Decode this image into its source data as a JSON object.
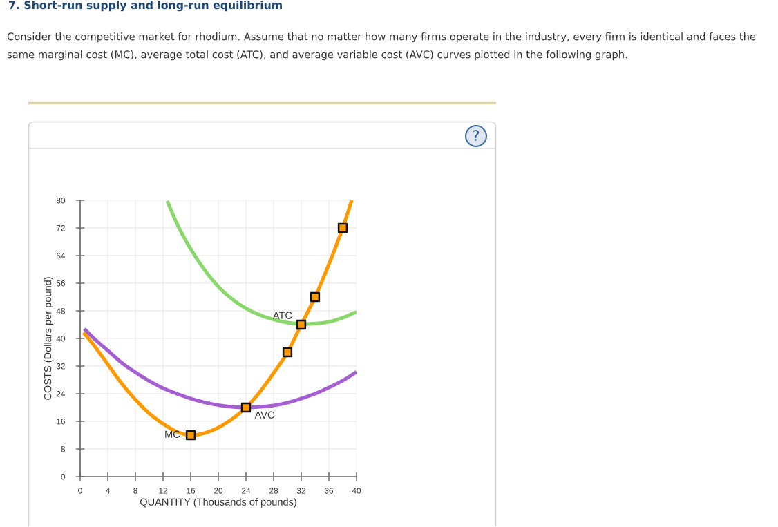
{
  "chart_data": {
    "type": "line",
    "title": "7. Short-run supply and long-run equilibrium",
    "subtitle": "Consider the competitive market for rhodium. Assume that no matter how many firms operate in the industry, every firm is identical and faces the same marginal cost (MC), average total cost (ATC), and average variable cost (AVC) curves plotted in the following graph.",
    "xlabel": "QUANTITY (Thousands of pounds)",
    "ylabel": "COSTS (Dollars per pound)",
    "annotations": [
      "?"
    ],
    "xlim": [
      0,
      40
    ],
    "ylim": [
      0,
      80
    ],
    "xticks": [
      0,
      4,
      8,
      12,
      16,
      20,
      24,
      28,
      32,
      36,
      40
    ],
    "yticks": [
      0,
      8,
      16,
      24,
      32,
      40,
      48,
      56,
      64,
      72,
      80
    ],
    "grid": true,
    "legend": false,
    "marker": "none",
    "series": [
      {
        "name": "MC",
        "color": "#ff9900",
        "x": [
          0.5,
          2,
          4,
          6,
          8,
          10,
          12,
          14,
          16,
          18,
          20,
          22,
          24,
          26,
          28,
          30,
          32,
          34,
          36,
          38,
          39.3
        ],
        "values": [
          41.7,
          38,
          32.5,
          27,
          22.3,
          18.3,
          15.3,
          13,
          12,
          12.6,
          14.2,
          16.7,
          20,
          24.5,
          30,
          36,
          44,
          52,
          61.5,
          72,
          80
        ]
      },
      {
        "name": "ATC",
        "color": "#8ad86b",
        "x": [
          12.6,
          14,
          16,
          18,
          20,
          22,
          24,
          26,
          28,
          30,
          32,
          34,
          36,
          38,
          40
        ],
        "values": [
          79.8,
          73.3,
          65.9,
          59.9,
          55,
          51.4,
          48.7,
          46.8,
          45.5,
          44.6,
          44.2,
          44.3,
          44.8,
          46,
          47.7
        ]
      },
      {
        "name": "AVC",
        "color": "#a65fd2",
        "x": [
          0.6,
          2,
          4,
          6,
          8,
          10,
          12,
          14,
          16,
          18,
          20,
          22,
          24,
          26,
          28,
          30,
          32,
          34,
          36,
          38,
          40
        ],
        "values": [
          42.8,
          40,
          36.5,
          33,
          30.2,
          27.7,
          25.6,
          24,
          22.6,
          21.5,
          20.7,
          20.2,
          20,
          20.2,
          20.6,
          21.4,
          22.6,
          24,
          25.8,
          27.8,
          30.3
        ]
      },
      {
        "type": "scatter",
        "marker": "square",
        "color": "#ff9900",
        "x": [
          16,
          24,
          30,
          32,
          34,
          38
        ],
        "values": [
          12,
          20,
          36,
          44,
          52,
          72
        ]
      }
    ]
  }
}
